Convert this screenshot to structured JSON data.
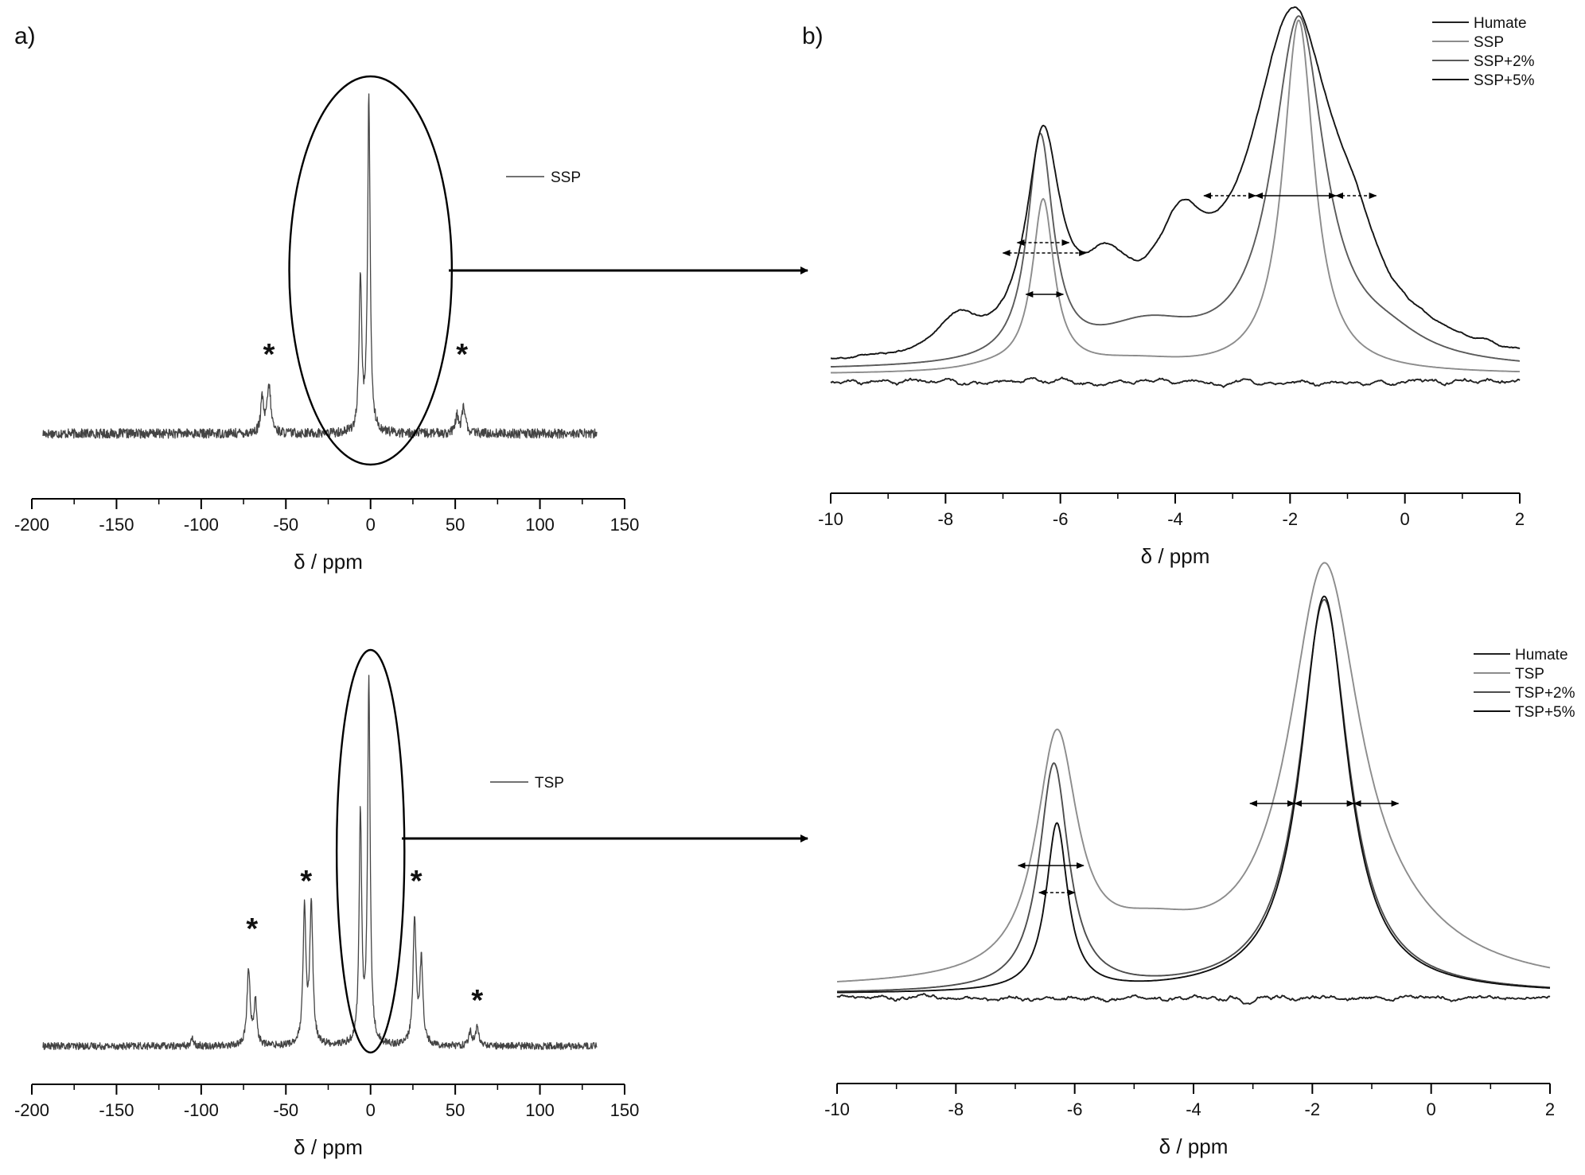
{
  "chart_data": [
    {
      "id": "a-top",
      "panel_label": "a)",
      "type": "line",
      "xlabel": "δ / ppm",
      "ylabel": "",
      "xlim": [
        -200,
        150
      ],
      "x_ticks": [
        "-200",
        "-150",
        "-100",
        "-50",
        "0",
        "50",
        "100",
        "150"
      ],
      "series": [
        {
          "name": "SSP",
          "color": "#444444",
          "peaks": [
            [
              -1,
              1.0,
              0.9
            ],
            [
              -6,
              0.46,
              0.9
            ],
            [
              -60,
              0.14,
              1.3
            ],
            [
              -64,
              0.1,
              1.0
            ],
            [
              55,
              0.08,
              1.2
            ],
            [
              51,
              0.05,
              1.0
            ]
          ],
          "noise": 0.013
        }
      ],
      "spinning_sidebands": [
        "*",
        "*"
      ],
      "ellipse_range": [
        -48,
        48
      ],
      "grid": false
    },
    {
      "id": "a-bottom",
      "panel_label": "",
      "type": "line",
      "xlabel": "δ / ppm",
      "ylabel": "",
      "xlim": [
        -200,
        150
      ],
      "x_ticks": [
        "-200",
        "-150",
        "-100",
        "-50",
        "0",
        "50",
        "100",
        "150"
      ],
      "series": [
        {
          "name": "TSP",
          "color": "#444444",
          "peaks": [
            [
              -1,
              1.0,
              0.9
            ],
            [
              -6,
              0.63,
              0.9
            ],
            [
              -35,
              0.38,
              1.1
            ],
            [
              -39,
              0.37,
              1.0
            ],
            [
              26,
              0.34,
              1.1
            ],
            [
              30,
              0.23,
              1.1
            ],
            [
              -72,
              0.21,
              1.1
            ],
            [
              -68,
              0.12,
              1.0
            ],
            [
              63,
              0.05,
              1.1
            ],
            [
              59,
              0.04,
              1.0
            ],
            [
              -105,
              0.02,
              1.0
            ]
          ],
          "noise": 0.009
        }
      ],
      "spinning_sidebands": [
        "*",
        "*",
        "*",
        "*"
      ],
      "ellipse_range": [
        -20,
        20
      ],
      "grid": false
    },
    {
      "id": "b-top",
      "panel_label": "b)",
      "type": "line",
      "xlabel": "δ / ppm",
      "ylabel": "",
      "xlim": [
        -10,
        2
      ],
      "x_ticks": [
        "-10",
        "-8",
        "-6",
        "-4",
        "-2",
        "0",
        "2"
      ],
      "legend_position": "top-right",
      "series": [
        {
          "name": "Humate",
          "color": "#222222",
          "baseline": 0.0,
          "noise": 0.025,
          "peaks": []
        },
        {
          "name": "SSP",
          "color": "#8c8c8c",
          "baseline": 0.02,
          "peaks": [
            [
              -1.85,
              0.98,
              0.33
            ],
            [
              -6.3,
              0.47,
              0.23
            ],
            [
              -4.7,
              0.03,
              1.2
            ],
            [
              -7.2,
              0.01,
              0.6
            ]
          ]
        },
        {
          "name": "SSP+2%",
          "color": "#5a5a5a",
          "baseline": 0.03,
          "peaks": [
            [
              -1.85,
              0.96,
              0.55
            ],
            [
              -6.35,
              0.62,
              0.27
            ],
            [
              -4.5,
              0.1,
              1.1
            ],
            [
              -0.3,
              0.05,
              0.8
            ]
          ]
        },
        {
          "name": "SSP+5%",
          "color": "#141414",
          "baseline": 0.04,
          "peaks": [
            [
              -1.95,
              0.95,
              0.9
            ],
            [
              -6.3,
              0.58,
              0.36
            ],
            [
              -3.9,
              0.25,
              0.55
            ],
            [
              -5.2,
              0.18,
              0.55
            ],
            [
              -7.8,
              0.09,
              0.4
            ],
            [
              -0.9,
              0.12,
              0.5
            ]
          ],
          "noise": 0.012
        }
      ],
      "grid": false
    },
    {
      "id": "b-bottom",
      "panel_label": "",
      "type": "line",
      "xlabel": "δ / ppm",
      "ylabel": "",
      "xlim": [
        -10,
        2
      ],
      "x_ticks": [
        "-10",
        "-8",
        "-6",
        "-4",
        "-2",
        "0",
        "2"
      ],
      "legend_position": "top-right",
      "series": [
        {
          "name": "Humate",
          "color": "#222222",
          "baseline": 0.0,
          "noise": 0.025,
          "peaks": []
        },
        {
          "name": "TSP",
          "color": "#8c8c8c",
          "baseline": 0.02,
          "peaks": [
            [
              -1.8,
              1.0,
              0.72
            ],
            [
              -6.3,
              0.59,
              0.42
            ],
            [
              -4.7,
              0.1,
              1.2
            ],
            [
              -0.8,
              0.08,
              1.5
            ]
          ]
        },
        {
          "name": "TSP+2%",
          "color": "#4d4d4d",
          "baseline": 0.01,
          "peaks": [
            [
              -1.8,
              0.99,
              0.5
            ],
            [
              -6.35,
              0.57,
              0.3
            ]
          ]
        },
        {
          "name": "TSP+5%",
          "color": "#0f0f0f",
          "baseline": 0.01,
          "peaks": [
            [
              -1.8,
              1.0,
              0.48
            ],
            [
              -6.3,
              0.42,
              0.22
            ]
          ]
        }
      ],
      "grid": false
    }
  ]
}
